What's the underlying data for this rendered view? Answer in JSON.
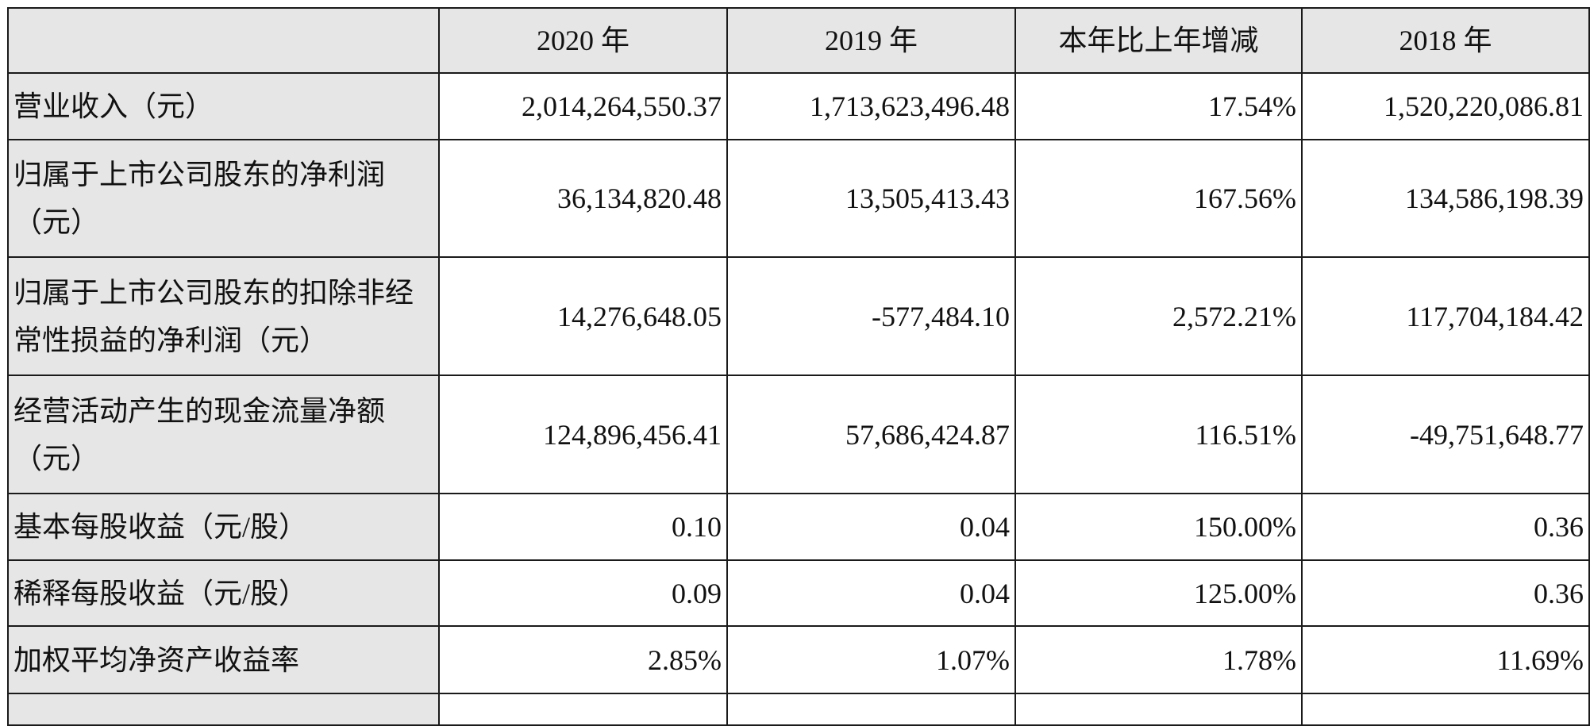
{
  "table": {
    "columns": [
      "2020 年",
      "2019 年",
      "本年比上年增减",
      "2018 年"
    ],
    "rows": [
      {
        "label": "营业收入（元）",
        "values": [
          "2,014,264,550.37",
          "1,713,623,496.48",
          "17.54%",
          "1,520,220,086.81"
        ]
      },
      {
        "label": "归属于上市公司股东的净利润（元）",
        "values": [
          "36,134,820.48",
          "13,505,413.43",
          "167.56%",
          "134,586,198.39"
        ]
      },
      {
        "label": "归属于上市公司股东的扣除非经常性损益的净利润（元）",
        "values": [
          "14,276,648.05",
          "-577,484.10",
          "2,572.21%",
          "117,704,184.42"
        ]
      },
      {
        "label": "经营活动产生的现金流量净额（元）",
        "values": [
          "124,896,456.41",
          "57,686,424.87",
          "116.51%",
          "-49,751,648.77"
        ]
      },
      {
        "label": "基本每股收益（元/股）",
        "values": [
          "0.10",
          "0.04",
          "150.00%",
          "0.36"
        ]
      },
      {
        "label": "稀释每股收益（元/股）",
        "values": [
          "0.09",
          "0.04",
          "125.00%",
          "0.36"
        ]
      },
      {
        "label": "加权平均净资产收益率",
        "values": [
          "2.85%",
          "1.07%",
          "1.78%",
          "11.69%"
        ]
      }
    ]
  }
}
